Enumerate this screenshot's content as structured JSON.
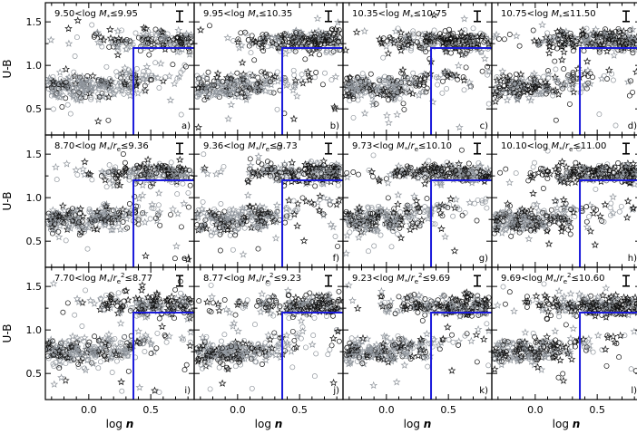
{
  "chart_data": {
    "type": "scatter",
    "title": "",
    "xlabel": "log n",
    "ylabel": "U-B",
    "xlim": [
      -0.35,
      0.85
    ],
    "ylim": [
      0.2,
      1.72
    ],
    "x_ticks": [
      0.0,
      0.5
    ],
    "x_tick_labels": [
      "0.0",
      "0.5"
    ],
    "y_ticks": [
      0.5,
      0.75,
      1.0,
      1.25,
      1.5
    ],
    "y_tick_labels": [
      "0.5",
      "1.0",
      "1.5"
    ],
    "y_tick_label_values": [
      0.5,
      1.0,
      1.5
    ],
    "selection_box": {
      "x_min": 0.36,
      "y_min": 1.2,
      "color": "#1a1adb"
    },
    "series_styles": [
      {
        "name": "dark points",
        "color": "#111111"
      },
      {
        "name": "grey points",
        "color": "#8f959c"
      }
    ],
    "error_bar": {
      "y_halfwidth": 0.06
    },
    "rows": [
      {
        "ylabel": "U-B"
      },
      {
        "ylabel": "U-B"
      },
      {
        "ylabel": "U-B"
      }
    ],
    "panels": [
      {
        "label": "a)",
        "title": "9.50<log M*≤9.95",
        "dark_fraction": 0.42
      },
      {
        "label": "b)",
        "title": "9.95<log M*≤10.35",
        "dark_fraction": 0.46
      },
      {
        "label": "c)",
        "title": "10.35<log M*≤10.75",
        "dark_fraction": 0.5
      },
      {
        "label": "d)",
        "title": "10.75<log M*≤11.50",
        "dark_fraction": 0.55
      },
      {
        "label": "e)",
        "title": "8.70<log M*/re≤9.36",
        "dark_fraction": 0.42
      },
      {
        "label": "f)",
        "title": "9.36<log M*/re≤9.73",
        "dark_fraction": 0.46
      },
      {
        "label": "g)",
        "title": "9.73<log M*/re≤10.10",
        "dark_fraction": 0.5
      },
      {
        "label": "h)",
        "title": "10.10<log M*/re≤11.00",
        "dark_fraction": 0.55
      },
      {
        "label": "i)",
        "title": "7.70<log M*/re²≤8.77",
        "dark_fraction": 0.42
      },
      {
        "label": "j)",
        "title": "8.77<log M*/re²≤9.23",
        "dark_fraction": 0.46
      },
      {
        "label": "k)",
        "title": "9.23<log M*/re²≤9.69",
        "dark_fraction": 0.5
      },
      {
        "label": "l)",
        "title": "9.69<log M*/re²≤10.60",
        "dark_fraction": 0.55
      }
    ]
  }
}
